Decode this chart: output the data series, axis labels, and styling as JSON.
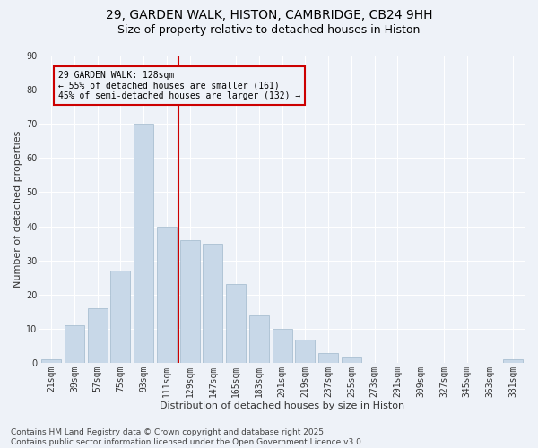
{
  "title_line1": "29, GARDEN WALK, HISTON, CAMBRIDGE, CB24 9HH",
  "title_line2": "Size of property relative to detached houses in Histon",
  "categories": [
    "21sqm",
    "39sqm",
    "57sqm",
    "75sqm",
    "93sqm",
    "111sqm",
    "129sqm",
    "147sqm",
    "165sqm",
    "183sqm",
    "201sqm",
    "219sqm",
    "237sqm",
    "255sqm",
    "273sqm",
    "291sqm",
    "309sqm",
    "327sqm",
    "345sqm",
    "363sqm",
    "381sqm"
  ],
  "values": [
    1,
    11,
    16,
    27,
    70,
    40,
    36,
    35,
    23,
    14,
    10,
    7,
    3,
    2,
    0,
    0,
    0,
    0,
    0,
    0,
    1
  ],
  "bar_color": "#c8d8e8",
  "bar_edge_color": "#a0b8cc",
  "background_color": "#eef2f8",
  "grid_color": "#ffffff",
  "ylabel": "Number of detached properties",
  "xlabel": "Distribution of detached houses by size in Histon",
  "property_line_label": "29 GARDEN WALK: 128sqm",
  "annotation_line1": "← 55% of detached houses are smaller (161)",
  "annotation_line2": "45% of semi-detached houses are larger (132) →",
  "annotation_box_color": "#cc0000",
  "ylim": [
    0,
    90
  ],
  "yticks": [
    0,
    10,
    20,
    30,
    40,
    50,
    60,
    70,
    80,
    90
  ],
  "footer_line1": "Contains HM Land Registry data © Crown copyright and database right 2025.",
  "footer_line2": "Contains public sector information licensed under the Open Government Licence v3.0.",
  "title_fontsize": 10,
  "subtitle_fontsize": 9,
  "axis_label_fontsize": 8,
  "tick_fontsize": 7,
  "annotation_fontsize": 7,
  "footer_fontsize": 6.5
}
